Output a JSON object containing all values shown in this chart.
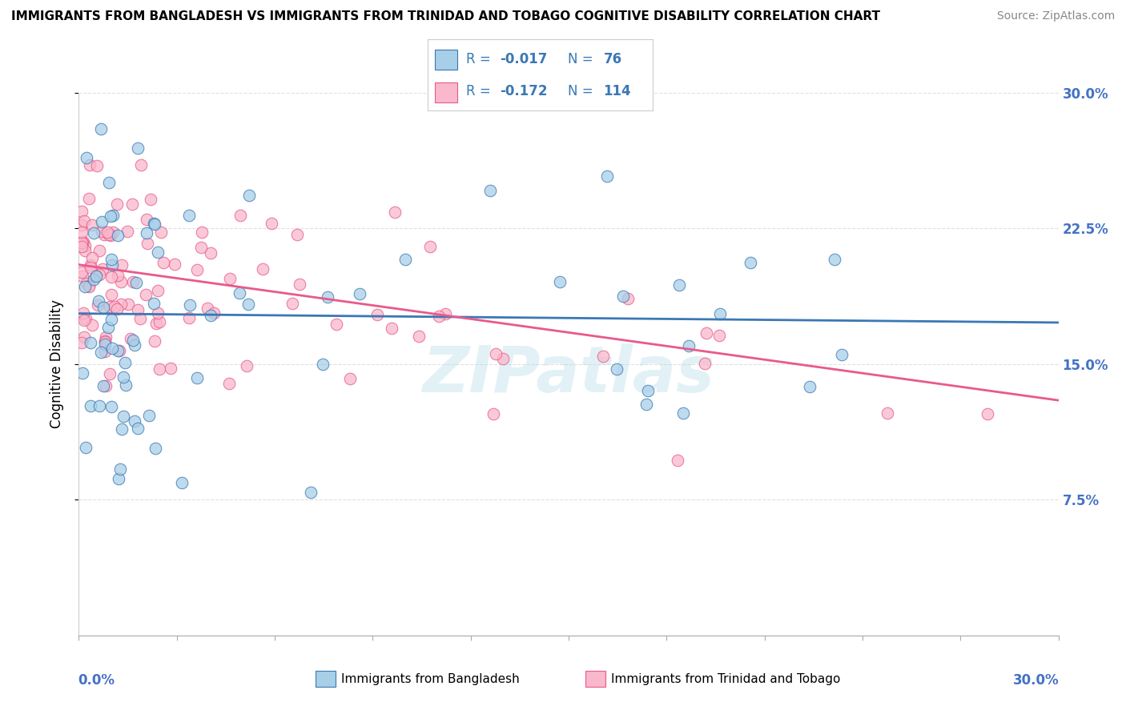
{
  "title": "IMMIGRANTS FROM BANGLADESH VS IMMIGRANTS FROM TRINIDAD AND TOBAGO COGNITIVE DISABILITY CORRELATION CHART",
  "source": "Source: ZipAtlas.com",
  "ylabel": "Cognitive Disability",
  "ytick_labels": [
    "7.5%",
    "15.0%",
    "22.5%",
    "30.0%"
  ],
  "ytick_values": [
    7.5,
    15.0,
    22.5,
    30.0
  ],
  "xlim": [
    0.0,
    30.0
  ],
  "ylim": [
    0.0,
    30.0
  ],
  "color_bangladesh": "#a8cfe8",
  "color_tt": "#f9b8cb",
  "color_bangladesh_line": "#3a78b5",
  "color_tt_line": "#e85a8a",
  "color_legend_text": "#3a78b5",
  "watermark": "ZIPatlas",
  "background_color": "#ffffff",
  "grid_color": "#e0e0e0",
  "title_fontsize": 11,
  "source_fontsize": 10,
  "tick_fontsize": 12,
  "legend_fontsize": 12
}
